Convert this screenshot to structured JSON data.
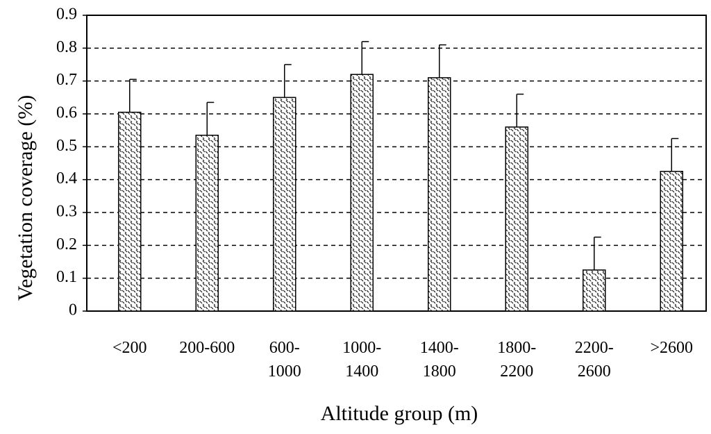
{
  "chart_data": {
    "type": "bar",
    "x_label": "Altitude group (m)",
    "y_label": "Vegetation coverage (%)",
    "categories": [
      "<200",
      "200-600",
      "600-\n1000",
      "1000-\n1400",
      "1400-\n1800",
      "1800-\n2200",
      "2200-\n2600",
      ">2600"
    ],
    "values": [
      0.605,
      0.535,
      0.65,
      0.72,
      0.71,
      0.56,
      0.125,
      0.425
    ],
    "errors": [
      0.1,
      0.1,
      0.1,
      0.1,
      0.1,
      0.1,
      0.1,
      0.1
    ],
    "color": "#000000",
    "ylim": [
      0,
      0.9
    ],
    "yticks": [
      0,
      0.1,
      0.2,
      0.3,
      0.4,
      0.5,
      0.6,
      0.7,
      0.8,
      0.9
    ],
    "grid": true
  }
}
